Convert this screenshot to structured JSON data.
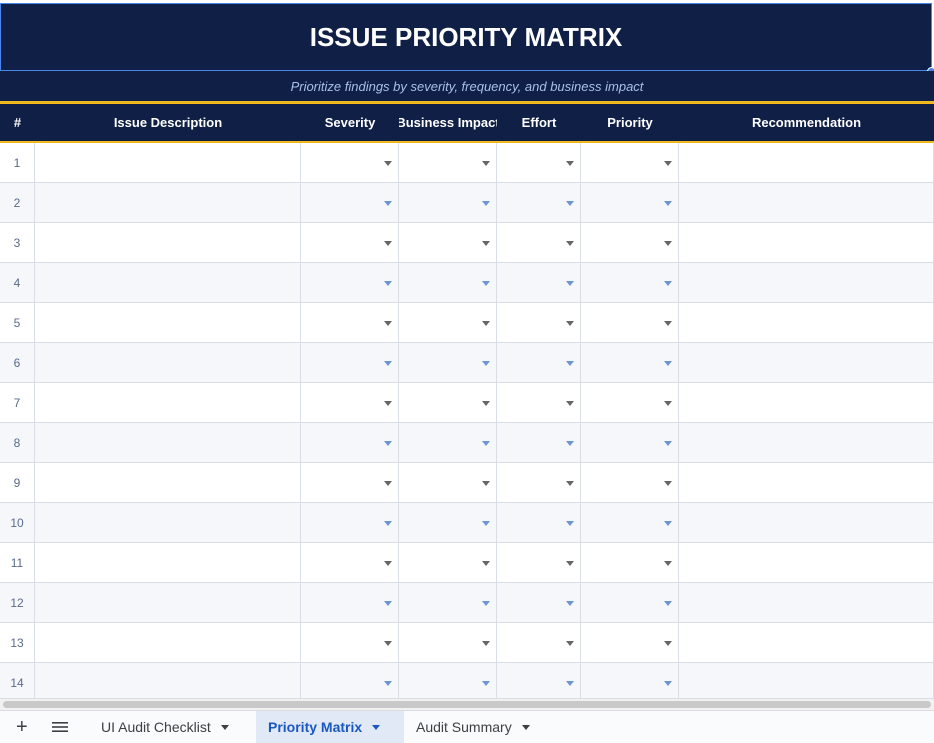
{
  "title": "ISSUE PRIORITY MATRIX",
  "subtitle": "Prioritize findings by severity, frequency, and business impact",
  "table": {
    "headers": [
      "#",
      "Issue Description",
      "Severity",
      "Business Impact",
      "Effort",
      "Priority",
      "Recommendation"
    ],
    "row_numbers": [
      1,
      2,
      3,
      4,
      5,
      6,
      7,
      8,
      9,
      10,
      11,
      12,
      13,
      14
    ]
  },
  "sheet_tabs": {
    "tabs": [
      "UI Audit Checklist",
      "Priority Matrix",
      "Audit Summary"
    ],
    "active": "Priority Matrix"
  }
}
